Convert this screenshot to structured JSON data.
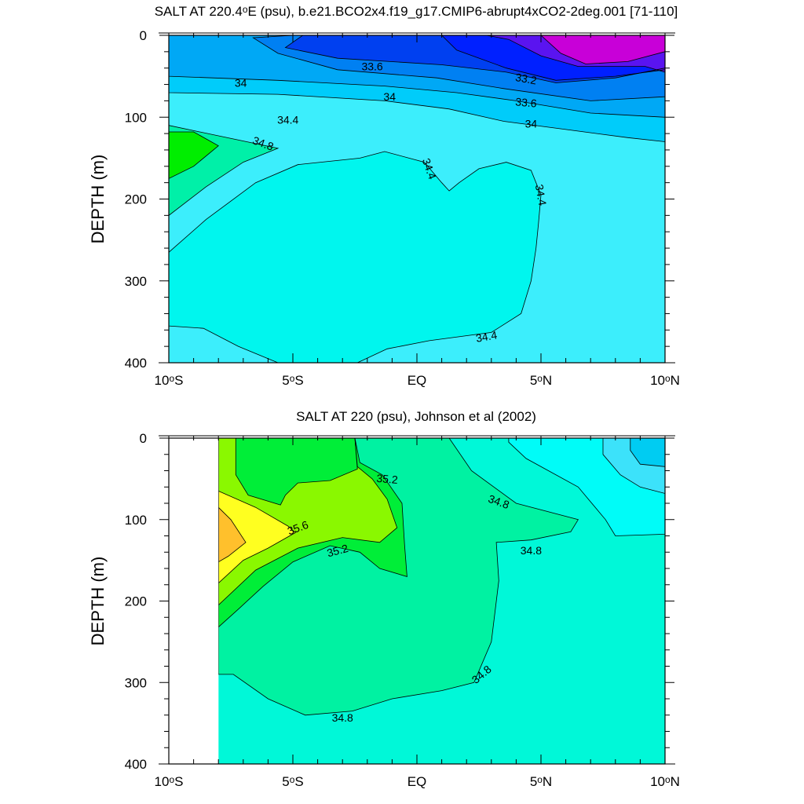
{
  "chart_data": [
    {
      "type": "contour",
      "title": "SALT AT 220.4°E (psu), b.e21.BCO2x4.f19_g17.CMIP6-abrupt4xCO2-2deg.001 [71-110]",
      "ylabel": "DEPTH (m)",
      "xlabel": "",
      "xlim": [
        -10,
        10
      ],
      "ylim": [
        0,
        400
      ],
      "y_inverted": true,
      "x_ticks": [
        {
          "value": -10,
          "label": "10°S"
        },
        {
          "value": -5,
          "label": "5°S"
        },
        {
          "value": 0,
          "label": "EQ"
        },
        {
          "value": 5,
          "label": "5°N"
        },
        {
          "value": 10,
          "label": "10°N"
        }
      ],
      "y_ticks": [
        {
          "value": 0,
          "label": "0"
        },
        {
          "value": 100,
          "label": "100"
        },
        {
          "value": 200,
          "label": "200"
        },
        {
          "value": 300,
          "label": "300"
        },
        {
          "value": 400,
          "label": "400"
        }
      ],
      "contour_interval": 0.2,
      "regions": [
        {
          "level": 34.4,
          "color": "#3ceefc",
          "points": [
            [
              -10,
              0
            ],
            [
              10,
              0
            ],
            [
              10,
              400
            ],
            [
              -10,
              400
            ]
          ]
        },
        {
          "level": 34.6,
          "color": "#00f6ee",
          "points": [
            [
              -10,
              265
            ],
            [
              -8.5,
              225
            ],
            [
              -6.5,
              180
            ],
            [
              -4.8,
              158
            ],
            [
              -2.3,
              150
            ],
            [
              -1.3,
              142
            ],
            [
              0.3,
              155
            ],
            [
              1.0,
              180
            ],
            [
              1.3,
              190
            ],
            [
              1.7,
              180
            ],
            [
              2.5,
              163
            ],
            [
              3.6,
              155
            ],
            [
              4.6,
              165
            ],
            [
              5.0,
              195
            ],
            [
              4.9,
              230
            ],
            [
              4.8,
              260
            ],
            [
              4.6,
              300
            ],
            [
              4.2,
              340
            ],
            [
              3.0,
              363
            ],
            [
              0.5,
              373
            ],
            [
              -1.2,
              383
            ],
            [
              -2.4,
              400
            ],
            [
              -5.6,
              400
            ],
            [
              -7.2,
              380
            ],
            [
              -8.6,
              358
            ],
            [
              -10,
              355
            ]
          ]
        },
        {
          "level": 34.8,
          "color": "#00f0a8",
          "points": [
            [
              -10,
              220
            ],
            [
              -8.5,
              185
            ],
            [
              -7.0,
              155
            ],
            [
              -5.6,
              138
            ],
            [
              -10,
              110
            ]
          ]
        },
        {
          "level": 35.0,
          "color": "#00ee00",
          "points": [
            [
              -10,
              175
            ],
            [
              -9.0,
              160
            ],
            [
              -8.0,
              135
            ],
            [
              -9.0,
              118
            ],
            [
              -10,
              118
            ]
          ]
        },
        {
          "level": 34.2,
          "color": "#00ccfa",
          "points": [
            [
              -10,
              0
            ],
            [
              10,
              0
            ],
            [
              10,
              130
            ],
            [
              8.5,
              125
            ],
            [
              6.0,
              115
            ],
            [
              3.5,
              105
            ],
            [
              1.3,
              90
            ],
            [
              -1.3,
              80
            ],
            [
              -5.6,
              72
            ],
            [
              -10,
              70
            ]
          ]
        },
        {
          "level": 34.0,
          "color": "#00a8f5",
          "points": [
            [
              -10,
              0
            ],
            [
              10,
              0
            ],
            [
              10,
              100
            ],
            [
              7.0,
              95
            ],
            [
              4.0,
              80
            ],
            [
              1.6,
              70
            ],
            [
              -1.3,
              62
            ],
            [
              -5.6,
              55
            ],
            [
              -10,
              50
            ]
          ]
        },
        {
          "level": 33.8,
          "color": "#0080f2",
          "points": [
            [
              -5.0,
              0
            ],
            [
              10,
              0
            ],
            [
              10,
              75
            ],
            [
              7.0,
              80
            ],
            [
              3.5,
              65
            ],
            [
              0.8,
              52
            ],
            [
              -3.2,
              42
            ],
            [
              -5.6,
              22
            ],
            [
              -6.6,
              3
            ]
          ]
        },
        {
          "level": 33.6,
          "color": "#0040f0",
          "points": [
            [
              -4.6,
              0
            ],
            [
              10,
              0
            ],
            [
              10,
              40
            ],
            [
              8.0,
              52
            ],
            [
              5.6,
              58
            ],
            [
              3.6,
              45
            ],
            [
              1.0,
              36
            ],
            [
              -3.2,
              28
            ],
            [
              -5.3,
              15
            ]
          ]
        },
        {
          "level": 33.4,
          "color": "#0020ff",
          "points": [
            [
              1.0,
              0
            ],
            [
              10,
              0
            ],
            [
              10,
              42
            ],
            [
              8.0,
              50
            ],
            [
              5.6,
              55
            ],
            [
              3.6,
              40
            ],
            [
              1.6,
              18
            ]
          ]
        },
        {
          "level": 33.2,
          "color": "#5a14f0",
          "points": [
            [
              2.8,
              0
            ],
            [
              10,
              0
            ],
            [
              10,
              45
            ],
            [
              9.2,
              38
            ],
            [
              6.5,
              38
            ],
            [
              5.0,
              25
            ],
            [
              3.7,
              5
            ]
          ]
        },
        {
          "level": 33.0,
          "color": "#c800d8",
          "points": [
            [
              5.0,
              0
            ],
            [
              10,
              0
            ],
            [
              10,
              20
            ],
            [
              8.5,
              32
            ],
            [
              6.8,
              35
            ],
            [
              5.8,
              22
            ]
          ]
        }
      ],
      "labels": [
        {
          "text": "33.6",
          "x": -1.8,
          "y": 38,
          "rotate": 0
        },
        {
          "text": "33.2",
          "x": 4.4,
          "y": 53,
          "rotate": 10
        },
        {
          "text": "34",
          "x": -7.1,
          "y": 58,
          "rotate": 0
        },
        {
          "text": "34",
          "x": -1.1,
          "y": 75,
          "rotate": 0
        },
        {
          "text": "33.6",
          "x": 4.4,
          "y": 82,
          "rotate": 5
        },
        {
          "text": "34.4",
          "x": -5.2,
          "y": 103,
          "rotate": 0
        },
        {
          "text": "34",
          "x": 4.6,
          "y": 108,
          "rotate": 0
        },
        {
          "text": "34.8",
          "x": -6.2,
          "y": 132,
          "rotate": 20
        },
        {
          "text": "34.4",
          "x": 0.5,
          "y": 163,
          "rotate": 70
        },
        {
          "text": "34.4",
          "x": 5.0,
          "y": 195,
          "rotate": 80
        },
        {
          "text": "34.4",
          "x": 2.8,
          "y": 368,
          "rotate": -10
        }
      ]
    },
    {
      "type": "contour",
      "title": "SALT AT 220 (psu), Johnson et al (2002)",
      "ylabel": "DEPTH (m)",
      "xlabel": "",
      "xlim": [
        -10,
        10
      ],
      "ylim": [
        0,
        400
      ],
      "y_inverted": true,
      "data_xmin": -8,
      "x_ticks": [
        {
          "value": -10,
          "label": "10°S"
        },
        {
          "value": -5,
          "label": "5°S"
        },
        {
          "value": 0,
          "label": "EQ"
        },
        {
          "value": 5,
          "label": "5°N"
        },
        {
          "value": 10,
          "label": "10°N"
        }
      ],
      "y_ticks": [
        {
          "value": 0,
          "label": "0"
        },
        {
          "value": 100,
          "label": "100"
        },
        {
          "value": 200,
          "label": "200"
        },
        {
          "value": 300,
          "label": "300"
        },
        {
          "value": 400,
          "label": "400"
        }
      ],
      "contour_interval": 0.2,
      "regions": [
        {
          "level": 34.8,
          "color": "#00f8d8",
          "points": [
            [
              -8,
              0
            ],
            [
              10,
              0
            ],
            [
              10,
              400
            ],
            [
              -8,
              400
            ]
          ]
        },
        {
          "level": 35.0,
          "color": "#00f2a2",
          "points": [
            [
              -8,
              0
            ],
            [
              1.3,
              0
            ],
            [
              2.2,
              40
            ],
            [
              4.0,
              80
            ],
            [
              6.5,
              100
            ],
            [
              6.2,
              115
            ],
            [
              4.6,
              125
            ],
            [
              3.2,
              128
            ],
            [
              3.3,
              175
            ],
            [
              3.0,
              250
            ],
            [
              2.3,
              300
            ],
            [
              1.0,
              310
            ],
            [
              -1.0,
              320
            ],
            [
              -2.6,
              335
            ],
            [
              -4.5,
              340
            ],
            [
              -6.0,
              320
            ],
            [
              -7.4,
              290
            ],
            [
              -8,
              290
            ]
          ]
        },
        {
          "level": 35.2,
          "color": "#00ee38",
          "points": [
            [
              -8,
              0
            ],
            [
              -2.5,
              0
            ],
            [
              -2.3,
              30
            ],
            [
              -1.4,
              45
            ],
            [
              -0.6,
              80
            ],
            [
              -0.5,
              130
            ],
            [
              -0.4,
              170
            ],
            [
              -1.5,
              160
            ],
            [
              -2.3,
              140
            ],
            [
              -3.5,
              132
            ],
            [
              -5.0,
              152
            ],
            [
              -6.2,
              182
            ],
            [
              -7.2,
              210
            ],
            [
              -8,
              232
            ]
          ]
        },
        {
          "level": 35.4,
          "color": "#8af800",
          "points": [
            [
              -8,
              0
            ],
            [
              -2.5,
              0
            ],
            [
              -2.4,
              35
            ],
            [
              -1.8,
              50
            ],
            [
              -1.2,
              75
            ],
            [
              -0.8,
              110
            ],
            [
              -1.5,
              128
            ],
            [
              -3.0,
              122
            ],
            [
              -4.8,
              135
            ],
            [
              -6.5,
              162
            ],
            [
              -8,
              205
            ]
          ]
        },
        {
          "level": 35.2,
          "color": "#00ee38",
          "points": [
            [
              -7.3,
              0
            ],
            [
              -2.5,
              0
            ],
            [
              -2.4,
              38
            ],
            [
              -3.5,
              52
            ],
            [
              -4.8,
              55
            ],
            [
              -5.3,
              70
            ],
            [
              -5.5,
              82
            ],
            [
              -6.8,
              70
            ],
            [
              -7.3,
              45
            ]
          ]
        },
        {
          "level": 35.6,
          "color": "#ffff20",
          "points": [
            [
              -8,
              65
            ],
            [
              -6.5,
              85
            ],
            [
              -5.2,
              108
            ],
            [
              -4.9,
              116
            ],
            [
              -6.0,
              135
            ],
            [
              -7.0,
              150
            ],
            [
              -8,
              178
            ]
          ]
        },
        {
          "level": 35.8,
          "color": "#ffc02c",
          "points": [
            [
              -8,
              85
            ],
            [
              -7.5,
              100
            ],
            [
              -6.9,
              128
            ],
            [
              -7.6,
              145
            ],
            [
              -8,
              152
            ]
          ]
        },
        {
          "level": 34.6,
          "color": "#00fcf8",
          "points": [
            [
              3.7,
              0
            ],
            [
              10,
              0
            ],
            [
              10,
              118
            ],
            [
              8.0,
              120
            ],
            [
              7.6,
              100
            ],
            [
              6.5,
              60
            ],
            [
              4.4,
              25
            ],
            [
              3.7,
              5
            ]
          ]
        },
        {
          "level": 34.4,
          "color": "#3ce2fa",
          "points": [
            [
              7.5,
              0
            ],
            [
              10,
              0
            ],
            [
              10,
              68
            ],
            [
              9.0,
              60
            ],
            [
              8.2,
              45
            ],
            [
              7.5,
              20
            ]
          ]
        },
        {
          "level": 34.2,
          "color": "#00ccf2",
          "points": [
            [
              8.6,
              0
            ],
            [
              10,
              0
            ],
            [
              10,
              35
            ],
            [
              9.0,
              32
            ],
            [
              8.6,
              15
            ]
          ]
        }
      ],
      "labels": [
        {
          "text": "35.2",
          "x": -1.2,
          "y": 50,
          "rotate": 5
        },
        {
          "text": "34.8",
          "x": 3.3,
          "y": 78,
          "rotate": 20
        },
        {
          "text": "35.6",
          "x": -4.8,
          "y": 110,
          "rotate": -20
        },
        {
          "text": "35.2",
          "x": -3.2,
          "y": 138,
          "rotate": -15
        },
        {
          "text": "34.8",
          "x": 4.6,
          "y": 138,
          "rotate": 0
        },
        {
          "text": "34.8",
          "x": 2.6,
          "y": 290,
          "rotate": -40
        },
        {
          "text": "34.8",
          "x": -3.0,
          "y": 343,
          "rotate": 0
        }
      ]
    }
  ]
}
